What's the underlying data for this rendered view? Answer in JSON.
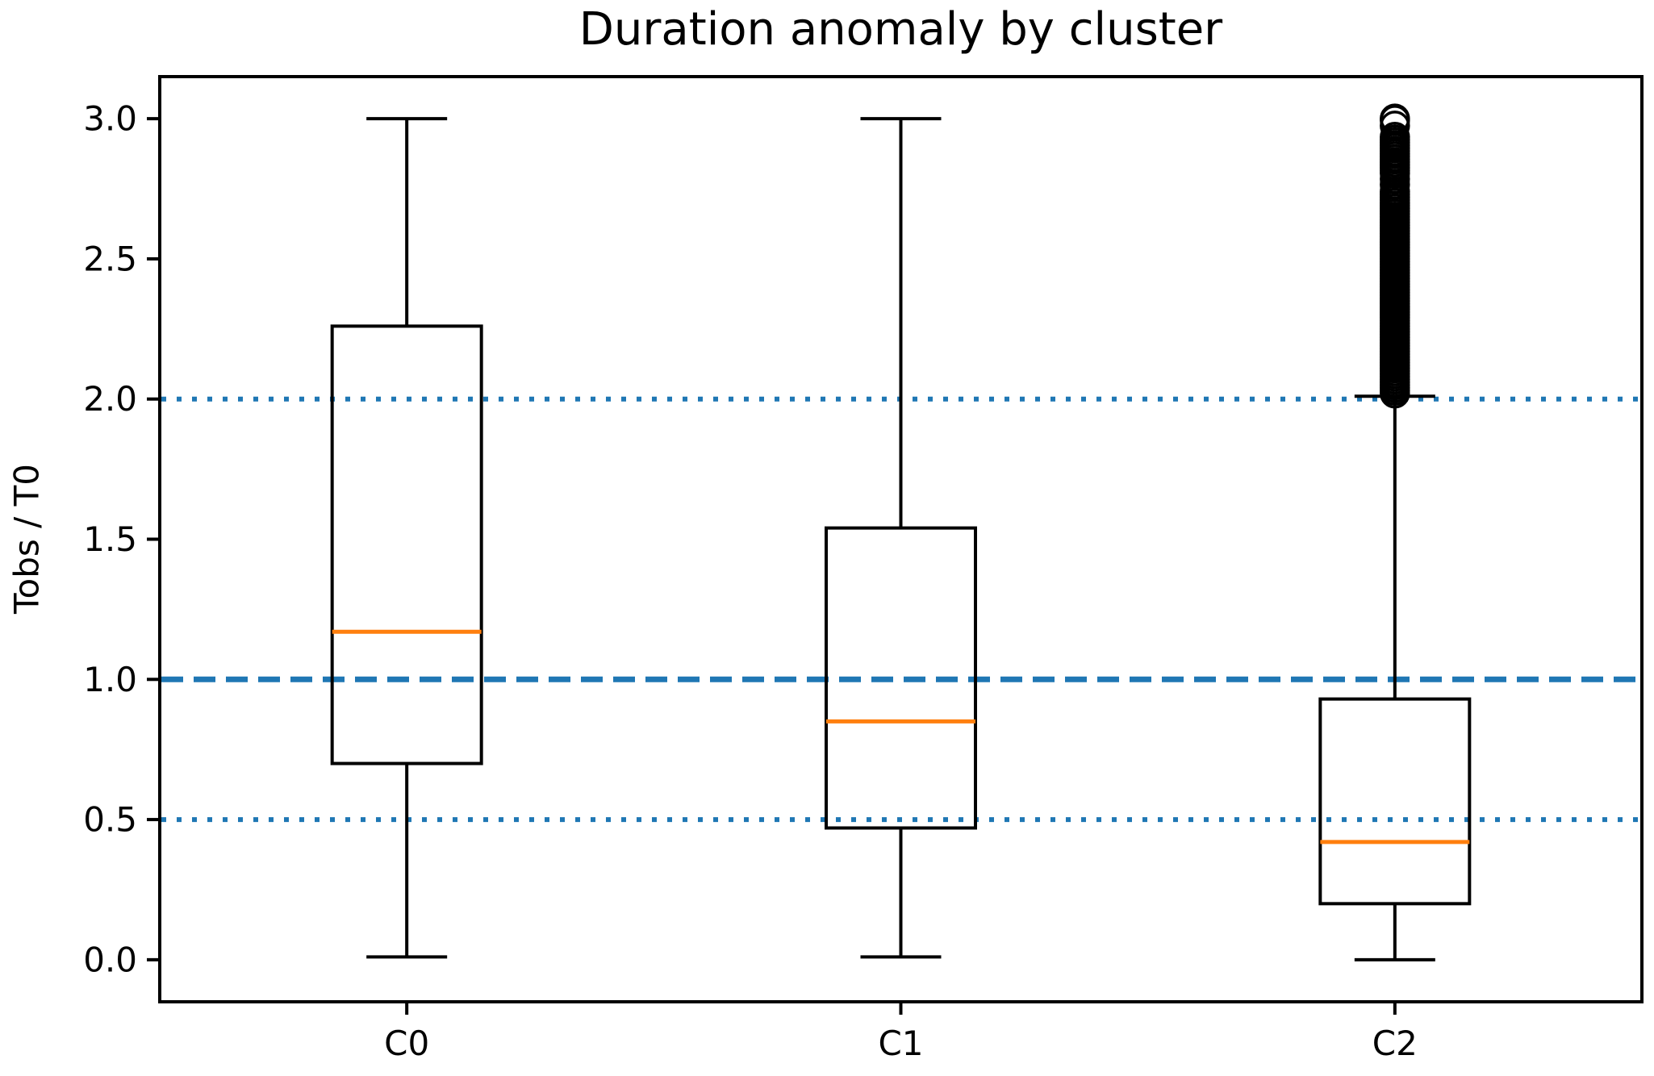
{
  "figure": {
    "background": "#ffffff"
  },
  "chart_data": {
    "type": "boxplot",
    "title": "Duration anomaly by cluster",
    "xlabel": "",
    "ylabel": "Tobs / T0",
    "categories": [
      "C0",
      "C1",
      "C2"
    ],
    "yticks": [
      0.0,
      0.5,
      1.0,
      1.5,
      2.0,
      2.5,
      3.0
    ],
    "ytick_labels": [
      "0.0",
      "0.5",
      "1.0",
      "1.5",
      "2.0",
      "2.5",
      "3.0"
    ],
    "ylim": [
      -0.15,
      3.15
    ],
    "grid": false,
    "legend": null,
    "reference_lines": [
      {
        "y": 1.0,
        "style": "dashed",
        "color": "#1f77b4",
        "width": 7
      },
      {
        "y": 0.5,
        "style": "dotted",
        "color": "#1f77b4",
        "width": 6
      },
      {
        "y": 2.0,
        "style": "dotted",
        "color": "#1f77b4",
        "width": 6
      }
    ],
    "series": [
      {
        "name": "C0",
        "whislo": 0.01,
        "q1": 0.7,
        "med": 1.17,
        "q3": 2.26,
        "whishi": 3.0,
        "fliers": []
      },
      {
        "name": "C1",
        "whislo": 0.01,
        "q1": 0.47,
        "med": 0.85,
        "q3": 1.54,
        "whishi": 3.0,
        "fliers": []
      },
      {
        "name": "C2",
        "whislo": 0.0,
        "q1": 0.2,
        "med": 0.42,
        "q3": 0.93,
        "whishi": 2.01,
        "fliers": [
          2.02,
          2.03,
          2.04,
          2.05,
          2.06,
          2.07,
          2.08,
          2.09,
          2.1,
          2.11,
          2.12,
          2.13,
          2.14,
          2.15,
          2.16,
          2.17,
          2.18,
          2.19,
          2.2,
          2.21,
          2.22,
          2.23,
          2.24,
          2.25,
          2.26,
          2.27,
          2.28,
          2.29,
          2.3,
          2.31,
          2.32,
          2.33,
          2.34,
          2.35,
          2.36,
          2.37,
          2.38,
          2.39,
          2.4,
          2.41,
          2.42,
          2.43,
          2.44,
          2.45,
          2.46,
          2.47,
          2.48,
          2.49,
          2.5,
          2.51,
          2.52,
          2.53,
          2.54,
          2.55,
          2.56,
          2.57,
          2.58,
          2.59,
          2.6,
          2.61,
          2.62,
          2.63,
          2.64,
          2.65,
          2.66,
          2.67,
          2.68,
          2.69,
          2.7,
          2.71,
          2.72,
          2.73,
          2.74,
          2.765,
          2.785,
          2.805,
          2.815,
          2.825,
          2.835,
          2.845,
          2.855,
          2.865,
          2.875,
          2.885,
          2.895,
          2.905,
          2.915,
          2.925,
          2.935,
          2.975,
          2.995,
          3.0
        ]
      }
    ],
    "styles": {
      "box_color": "#000000",
      "median_color": "#ff7f0e",
      "whisker_color": "#000000",
      "flier_marker": "circle-open",
      "flier_color": "#000000",
      "spine_color": "#000000"
    }
  }
}
